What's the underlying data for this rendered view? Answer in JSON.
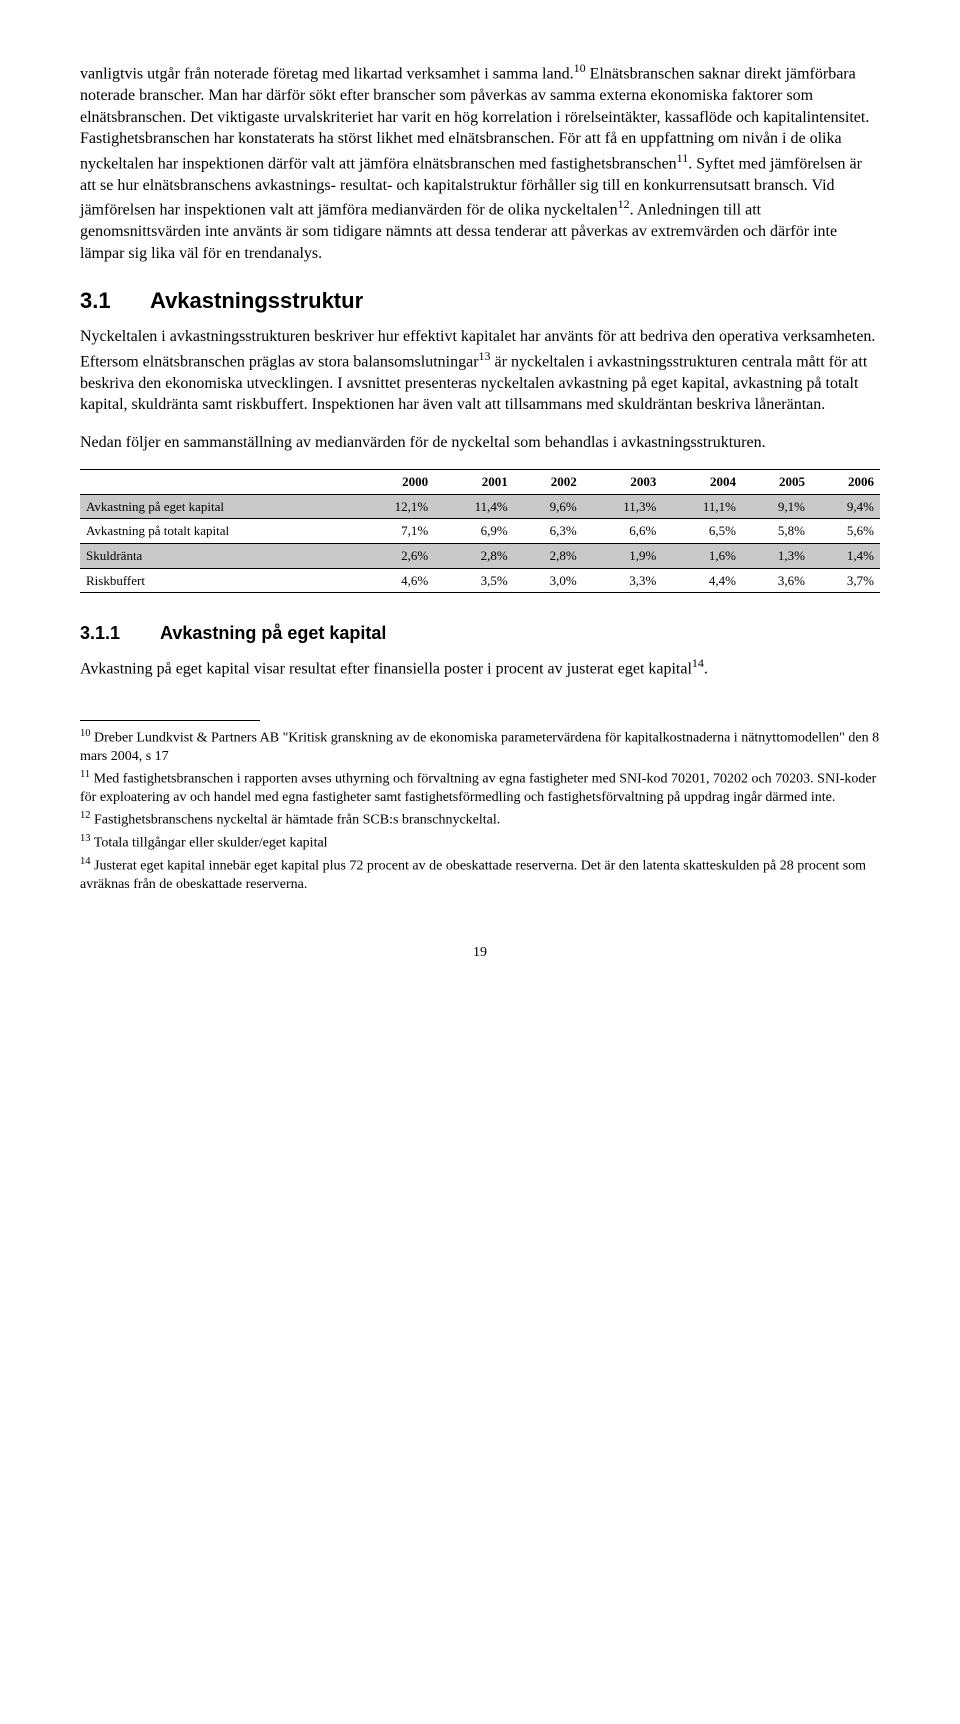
{
  "para1_a": "vanligtvis utgår från noterade företag med likartad verksamhet i samma land.",
  "sup10": "10",
  "para1_b": " Elnätsbranschen saknar direkt jämförbara noterade branscher. Man har därför sökt efter branscher som påverkas av samma externa ekonomiska faktorer som elnätsbranschen. Det viktigaste urvalskriteriet har varit en hög korrelation i rörelseintäkter, kassaflöde och kapitalintensitet. Fastighetsbranschen har konstaterats ha störst likhet med elnätsbranschen. För att få en uppfattning om nivån i de olika nyckeltalen har inspektionen därför valt att jämföra elnätsbranschen med fastighetsbranschen",
  "sup11": "11",
  "para1_c": ". Syftet med jämförelsen är att se hur elnätsbranschens avkastnings- resultat- och kapitalstruktur förhåller sig till en konkurrensutsatt bransch. Vid jämförelsen har inspektionen valt att jämföra medianvärden för de olika nyckeltalen",
  "sup12": "12",
  "para1_d": ". Anledningen till att genomsnittsvärden inte använts är som tidigare nämnts att dessa tenderar att påverkas av extremvärden och därför inte lämpar sig lika väl för en trendanalys.",
  "h2_num": "3.1",
  "h2_title": "Avkastningsstruktur",
  "para2_a": "Nyckeltalen i avkastningsstrukturen beskriver hur effektivt kapitalet har använts för att bedriva den operativa verksamheten. Eftersom elnätsbranschen präglas av stora balansomslutningar",
  "sup13": "13",
  "para2_b": " är nyckeltalen i avkastningsstrukturen centrala mått för att beskriva den ekonomiska utvecklingen. I avsnittet presenteras nyckeltalen avkastning på eget kapital, avkastning på totalt kapital, skuldränta samt riskbuffert. Inspektionen har även valt att tillsammans med skuldräntan beskriva låneräntan.",
  "para3": "Nedan följer en sammanställning av medianvärden för de nyckeltal som behandlas i avkastningsstrukturen.",
  "table": {
    "years": [
      "2000",
      "2001",
      "2002",
      "2003",
      "2004",
      "2005",
      "2006"
    ],
    "rows": [
      {
        "label": "Avkastning på eget kapital",
        "vals": [
          "12,1%",
          "11,4%",
          "9,6%",
          "11,3%",
          "11,1%",
          "9,1%",
          "9,4%"
        ],
        "shaded": true
      },
      {
        "label": "Avkastning på totalt kapital",
        "vals": [
          "7,1%",
          "6,9%",
          "6,3%",
          "6,6%",
          "6,5%",
          "5,8%",
          "5,6%"
        ],
        "shaded": false
      },
      {
        "label": "Skuldränta",
        "vals": [
          "2,6%",
          "2,8%",
          "2,8%",
          "1,9%",
          "1,6%",
          "1,3%",
          "1,4%"
        ],
        "shaded": true
      },
      {
        "label": "Riskbuffert",
        "vals": [
          "4,6%",
          "3,5%",
          "3,0%",
          "3,3%",
          "4,4%",
          "3,6%",
          "3,7%"
        ],
        "shaded": false
      }
    ]
  },
  "h3_num": "3.1.1",
  "h3_title": "Avkastning på eget kapital",
  "para4_a": "Avkastning på eget kapital visar resultat efter finansiella poster i procent av justerat eget kapital",
  "sup14": "14",
  "para4_b": ".",
  "footnotes": {
    "f10_sup": "10",
    "f10": " Dreber Lundkvist & Partners AB \"Kritisk granskning av de ekonomiska parametervärdena för kapitalkostnaderna i nätnyttomodellen\" den 8 mars 2004, s 17",
    "f11_sup": "11",
    "f11": " Med fastighetsbranschen i rapporten avses uthyrning och förvaltning av egna fastigheter med SNI-kod 70201, 70202 och 70203. SNI-koder för exploatering av och handel med egna fastigheter samt fastighetsförmedling och fastighetsförvaltning på uppdrag ingår därmed inte.",
    "f12_sup": "12",
    "f12": " Fastighetsbranschens nyckeltal är hämtade från SCB:s branschnyckeltal.",
    "f13_sup": "13",
    "f13": " Totala tillgångar eller skulder/eget kapital",
    "f14_sup": "14",
    "f14": " Justerat eget kapital innebär eget kapital plus 72 procent av de obeskattade reserverna. Det är den latenta skatteskulden på 28 procent som avräknas från de obeskattade reserverna."
  },
  "page_number": "19"
}
